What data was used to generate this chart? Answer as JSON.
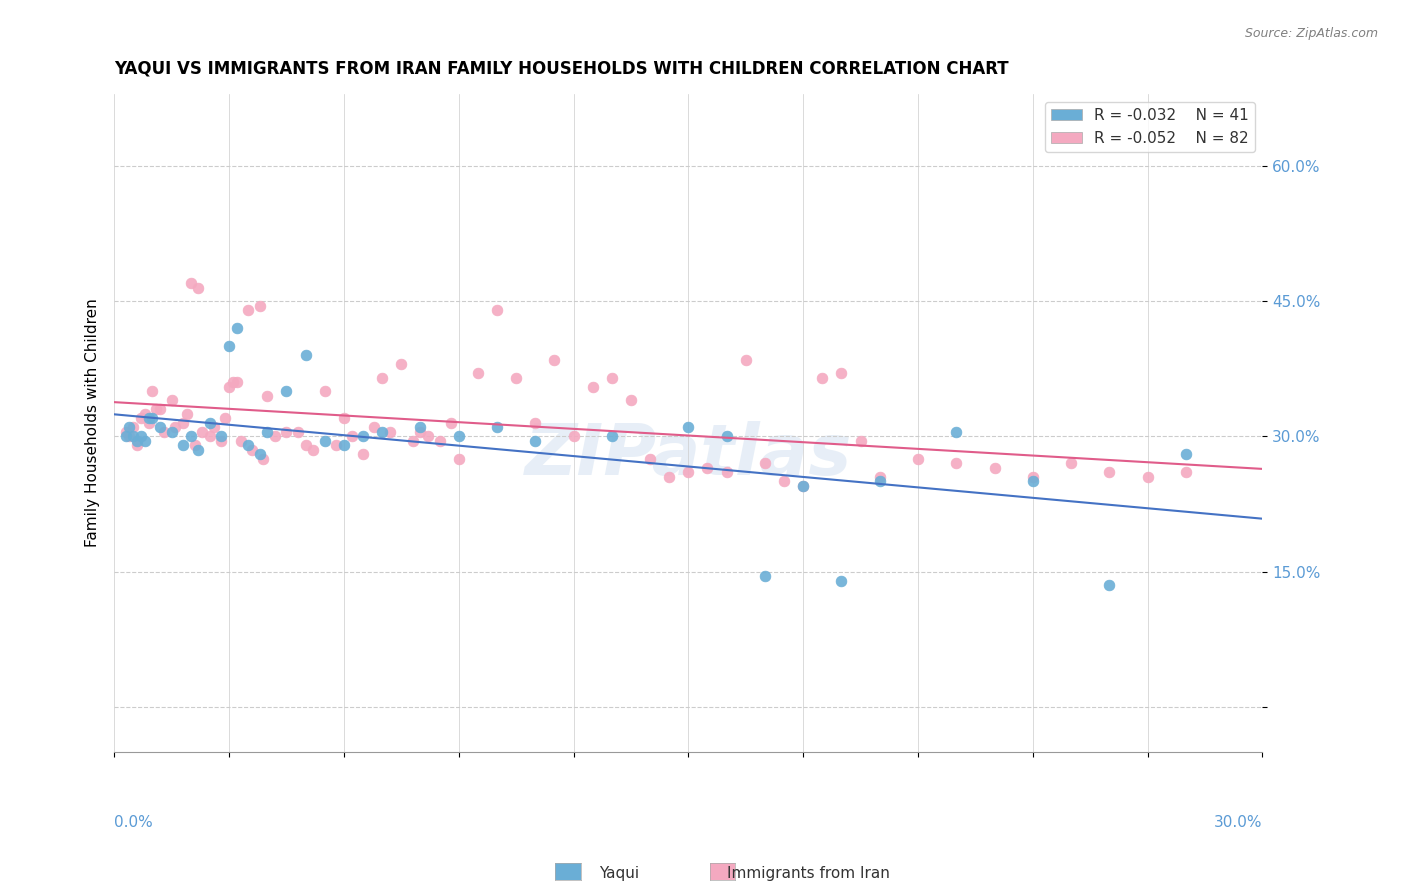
{
  "title": "YAQUI VS IMMIGRANTS FROM IRAN FAMILY HOUSEHOLDS WITH CHILDREN CORRELATION CHART",
  "source": "Source: ZipAtlas.com",
  "ylabel": "Family Households with Children",
  "xlim": [
    0.0,
    30.0
  ],
  "ylim": [
    -5.0,
    68.0
  ],
  "yticks": [
    0,
    15,
    30,
    45,
    60
  ],
  "ytick_labels": [
    "",
    "15.0%",
    "30.0%",
    "45.0%",
    "60.0%"
  ],
  "legend_r1": "R = -0.032",
  "legend_n1": "N = 41",
  "legend_r2": "R = -0.052",
  "legend_n2": "N = 82",
  "color_yaqui": "#6aaed6",
  "color_iran": "#f4a9c0",
  "line_color_yaqui": "#4472c4",
  "line_color_iran": "#e05c8a",
  "watermark": "ZIPatlas",
  "yaqui_x": [
    0.5,
    0.8,
    1.0,
    1.2,
    1.5,
    1.8,
    2.0,
    2.2,
    2.5,
    2.8,
    3.0,
    3.2,
    3.5,
    3.8,
    4.0,
    4.5,
    5.0,
    5.5,
    6.0,
    6.5,
    7.0,
    8.0,
    9.0,
    10.0,
    11.0,
    13.0,
    15.0,
    16.0,
    17.0,
    18.0,
    19.0,
    20.0,
    22.0,
    24.0,
    26.0,
    28.0,
    0.3,
    0.4,
    0.6,
    0.7,
    0.9
  ],
  "yaqui_y": [
    30.0,
    29.5,
    32.0,
    31.0,
    30.5,
    29.0,
    30.0,
    28.5,
    31.5,
    30.0,
    40.0,
    42.0,
    29.0,
    28.0,
    30.5,
    35.0,
    39.0,
    29.5,
    29.0,
    30.0,
    30.5,
    31.0,
    30.0,
    31.0,
    29.5,
    30.0,
    31.0,
    30.0,
    14.5,
    24.5,
    14.0,
    25.0,
    30.5,
    25.0,
    13.5,
    28.0,
    30.0,
    31.0,
    29.5,
    30.0,
    32.0
  ],
  "iran_x": [
    0.3,
    0.5,
    0.6,
    0.8,
    1.0,
    1.2,
    1.5,
    1.8,
    2.0,
    2.2,
    2.5,
    2.8,
    3.0,
    3.2,
    3.5,
    3.8,
    4.0,
    4.5,
    5.0,
    5.5,
    6.0,
    6.5,
    7.0,
    7.5,
    8.0,
    8.5,
    9.0,
    9.5,
    10.0,
    10.5,
    11.0,
    11.5,
    12.0,
    12.5,
    13.0,
    13.5,
    14.0,
    14.5,
    15.0,
    15.5,
    16.0,
    16.5,
    17.0,
    17.5,
    18.0,
    18.5,
    19.0,
    19.5,
    20.0,
    21.0,
    22.0,
    23.0,
    24.0,
    25.0,
    26.0,
    27.0,
    28.0,
    0.4,
    0.7,
    0.9,
    1.1,
    1.3,
    1.6,
    1.9,
    2.1,
    2.3,
    2.6,
    2.9,
    3.1,
    3.3,
    3.6,
    3.9,
    4.2,
    4.8,
    5.2,
    5.8,
    6.2,
    6.8,
    7.2,
    7.8,
    8.2,
    8.8
  ],
  "iran_y": [
    30.5,
    31.0,
    29.0,
    32.5,
    35.0,
    33.0,
    34.0,
    31.5,
    47.0,
    46.5,
    30.0,
    29.5,
    35.5,
    36.0,
    44.0,
    44.5,
    34.5,
    30.5,
    29.0,
    35.0,
    32.0,
    28.0,
    36.5,
    38.0,
    30.5,
    29.5,
    27.5,
    37.0,
    44.0,
    36.5,
    31.5,
    38.5,
    30.0,
    35.5,
    36.5,
    34.0,
    27.5,
    25.5,
    26.0,
    26.5,
    26.0,
    38.5,
    27.0,
    25.0,
    24.5,
    36.5,
    37.0,
    29.5,
    25.5,
    27.5,
    27.0,
    26.5,
    25.5,
    27.0,
    26.0,
    25.5,
    26.0,
    30.0,
    32.0,
    31.5,
    33.0,
    30.5,
    31.0,
    32.5,
    29.0,
    30.5,
    31.0,
    32.0,
    36.0,
    29.5,
    28.5,
    27.5,
    30.0,
    30.5,
    28.5,
    29.0,
    30.0,
    31.0,
    30.5,
    29.5,
    30.0,
    31.5
  ]
}
